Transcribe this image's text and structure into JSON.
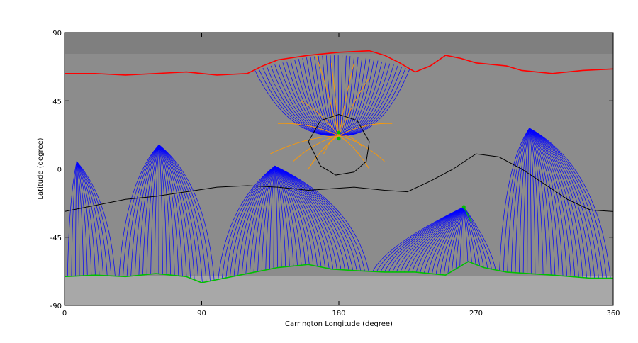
{
  "chart_data": {
    "type": "line",
    "title": "",
    "xlabel": "Carrington Longitude (degree)",
    "ylabel": "Latitude (degree)",
    "xlim": [
      0,
      360
    ],
    "ylim": [
      -90,
      90
    ],
    "xticks": [
      0,
      90,
      180,
      270,
      360
    ],
    "yticks": [
      -90,
      -45,
      0,
      45,
      90
    ],
    "grid": false,
    "legend": "none",
    "background": "grayscale magnetogram",
    "series": [
      {
        "color": "#000000",
        "style": "neutral line (south)",
        "points": [
          [
            0,
            -28
          ],
          [
            20,
            -24
          ],
          [
            40,
            -20
          ],
          [
            60,
            -18
          ],
          [
            80,
            -15
          ],
          [
            100,
            -12
          ],
          [
            120,
            -11
          ],
          [
            140,
            -12
          ],
          [
            160,
            -14
          ],
          [
            190,
            -12
          ],
          [
            210,
            -14
          ],
          [
            225,
            -15
          ],
          [
            240,
            -8
          ],
          [
            255,
            0
          ],
          [
            270,
            10
          ],
          [
            285,
            8
          ],
          [
            300,
            0
          ],
          [
            315,
            -10
          ],
          [
            330,
            -20
          ],
          [
            345,
            -27
          ],
          [
            360,
            -28
          ]
        ]
      },
      {
        "color": "#000000",
        "style": "closed contour (north)",
        "points": [
          [
            160,
            18
          ],
          [
            168,
            32
          ],
          [
            180,
            36
          ],
          [
            192,
            32
          ],
          [
            200,
            18
          ],
          [
            198,
            5
          ],
          [
            190,
            -2
          ],
          [
            178,
            -4
          ],
          [
            168,
            2
          ],
          [
            160,
            18
          ]
        ]
      },
      {
        "color": "#ff0000",
        "style": "coronal-hole boundary (north)",
        "points": [
          [
            0,
            63
          ],
          [
            20,
            63
          ],
          [
            40,
            62
          ],
          [
            60,
            63
          ],
          [
            80,
            64
          ],
          [
            100,
            62
          ],
          [
            120,
            63
          ],
          [
            130,
            68
          ],
          [
            140,
            72
          ],
          [
            160,
            75
          ],
          [
            180,
            77
          ],
          [
            200,
            78
          ],
          [
            210,
            75
          ],
          [
            220,
            70
          ],
          [
            230,
            64
          ],
          [
            240,
            68
          ],
          [
            250,
            75
          ],
          [
            260,
            73
          ],
          [
            270,
            70
          ],
          [
            290,
            68
          ],
          [
            300,
            65
          ],
          [
            320,
            63
          ],
          [
            340,
            65
          ],
          [
            360,
            66
          ]
        ]
      },
      {
        "color": "#00c000",
        "style": "coronal-hole boundary (south)",
        "points": [
          [
            0,
            -71
          ],
          [
            20,
            -70
          ],
          [
            40,
            -71
          ],
          [
            60,
            -69
          ],
          [
            80,
            -71
          ],
          [
            90,
            -75
          ],
          [
            100,
            -73
          ],
          [
            120,
            -69
          ],
          [
            140,
            -65
          ],
          [
            160,
            -63
          ],
          [
            175,
            -66
          ],
          [
            190,
            -67
          ],
          [
            210,
            -68
          ],
          [
            230,
            -68
          ],
          [
            250,
            -70
          ],
          [
            265,
            -61
          ],
          [
            275,
            -65
          ],
          [
            290,
            -68
          ],
          [
            320,
            -70
          ],
          [
            345,
            -72
          ],
          [
            360,
            -72
          ]
        ]
      },
      {
        "color": "#0000ff",
        "style": "open field lines (south)",
        "fan_centers": [
          [
            8,
            5
          ],
          [
            62,
            16
          ],
          [
            138,
            2
          ],
          [
            262,
            -25
          ],
          [
            305,
            27
          ]
        ]
      },
      {
        "color": "#ff9900",
        "style": "field lines near active region",
        "fan_centers": [
          [
            180,
            22
          ]
        ]
      }
    ]
  }
}
